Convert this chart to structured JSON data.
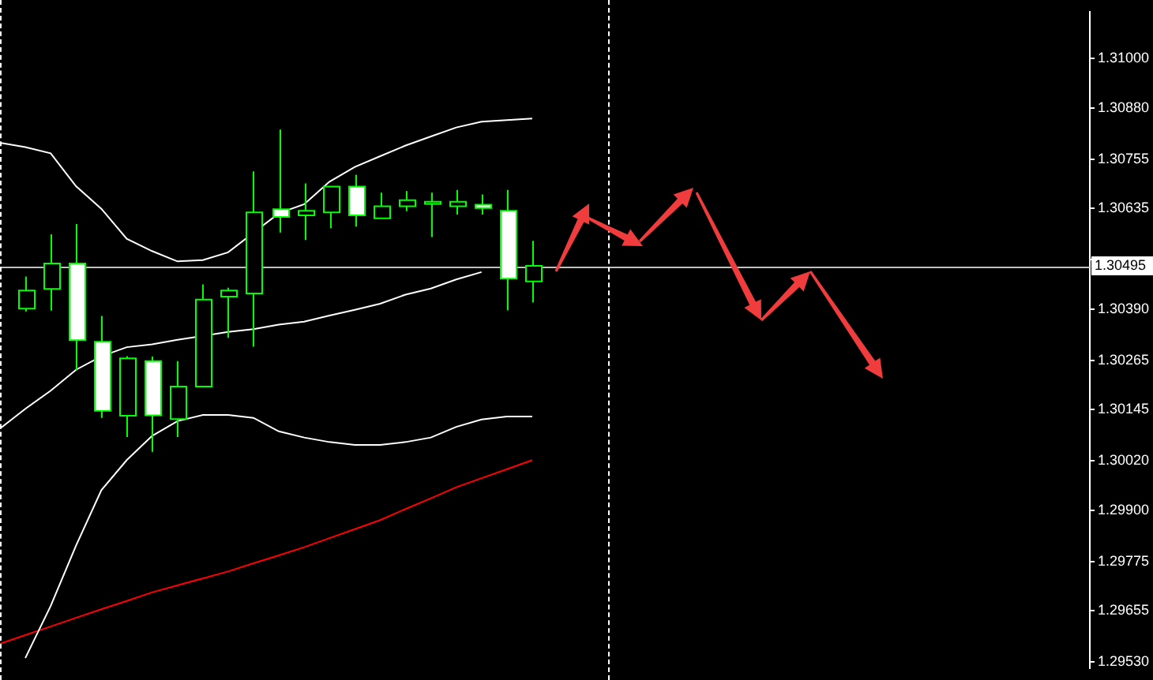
{
  "chart_data": {
    "type": "candlestick",
    "ylim": [
      1.29515,
      1.31114
    ],
    "categories": [
      null,
      null,
      null,
      null,
      null,
      null,
      null,
      null,
      null,
      null,
      null,
      null,
      null,
      null,
      null,
      null,
      null,
      null,
      null,
      null,
      null,
      null,
      null,
      null,
      null,
      null,
      null,
      null,
      null,
      null,
      null,
      null,
      null,
      null,
      null,
      null,
      null,
      null,
      null,
      null,
      null,
      null,
      null,
      null
    ],
    "yticks": [
      {
        "value": 1.31,
        "label": "1.31000"
      },
      {
        "value": 1.3088,
        "label": "1.30880"
      },
      {
        "value": 1.30755,
        "label": "1.30755"
      },
      {
        "value": 1.30635,
        "label": "1.30635"
      },
      {
        "value": 1.3051,
        "label": null
      },
      {
        "value": 1.3039,
        "label": "1.30390"
      },
      {
        "value": 1.30265,
        "label": "1.30265"
      },
      {
        "value": 1.30145,
        "label": "1.30145"
      },
      {
        "value": 1.3002,
        "label": "1.30020"
      },
      {
        "value": 1.299,
        "label": "1.29900"
      },
      {
        "value": 1.29775,
        "label": "1.29775"
      },
      {
        "value": 1.29655,
        "label": "1.29655"
      },
      {
        "value": 1.2953,
        "label": "1.29530"
      }
    ],
    "tick_labels": "y",
    "grid": false,
    "legend": false,
    "series": [
      {
        "type": "line",
        "color": "#ffffff",
        "values": [
          1.30795,
          1.30784,
          1.30769,
          1.30689,
          1.30634,
          1.30561,
          1.30531,
          1.30506,
          1.30509,
          1.30528,
          null,
          1.30623,
          1.30645,
          1.307,
          1.30736,
          1.30762,
          1.30788,
          1.3081,
          1.30832,
          1.30846,
          1.3085,
          1.30854,
          null,
          null,
          null,
          null,
          null,
          null,
          null,
          null,
          null,
          null,
          null,
          null,
          null,
          null,
          null,
          null,
          null,
          null,
          null,
          null,
          null,
          null
        ]
      },
      {
        "type": "line",
        "color": "#ffffff",
        "values": [
          1.30099,
          1.30147,
          1.30191,
          1.30242,
          1.30275,
          1.30297,
          1.30304,
          1.30315,
          null,
          1.30334,
          1.30341,
          1.30352,
          1.30359,
          1.30374,
          1.30388,
          1.30403,
          1.30425,
          1.3044,
          1.30462,
          1.3048,
          null,
          null,
          null,
          null,
          null,
          null,
          null,
          null,
          null,
          null,
          null,
          null,
          null,
          null,
          null,
          null,
          null,
          null,
          null,
          null,
          null,
          null,
          null,
          null
        ]
      },
      {
        "type": "line",
        "color": "#ffffff",
        "values": [
          null,
          1.2954,
          1.29667,
          1.29814,
          1.29949,
          1.30022,
          1.30081,
          1.30117,
          1.30132,
          1.30132,
          1.30125,
          1.30092,
          1.30077,
          1.30066,
          1.30059,
          1.30059,
          1.30066,
          1.30077,
          1.30103,
          1.30121,
          1.30128,
          1.30128,
          null,
          null,
          null,
          null,
          null,
          null,
          null,
          null,
          null,
          null,
          null,
          null,
          null,
          null,
          null,
          null,
          null,
          null,
          null,
          null,
          null,
          null
        ]
      },
      {
        "type": "line",
        "color": "#ff0000",
        "values": [
          1.29575,
          1.29596,
          1.29617,
          1.29638,
          1.29659,
          1.29679,
          1.297,
          1.29717,
          1.29734,
          1.29751,
          1.29771,
          1.2979,
          1.2981,
          1.29832,
          1.29854,
          1.29876,
          1.29903,
          1.29929,
          1.29956,
          1.29978,
          1.3,
          1.30022,
          null,
          null,
          null,
          null,
          null,
          null,
          null,
          null,
          null,
          null,
          null,
          null,
          null,
          null,
          null,
          null,
          null,
          null,
          null,
          null,
          null,
          null
        ]
      },
      {
        "color": "#00ff00",
        "colors": [
          null,
          "#000000",
          "#000000",
          "#ffffff",
          "#ffffff",
          "#000000",
          "#ffffff",
          "#000000",
          "#000000",
          "#000000",
          "#000000",
          "#ffffff",
          "#000000",
          "#000000",
          "#ffffff",
          "#000000",
          "#000000",
          "#000000",
          "#000000",
          "#ffffff",
          "#ffffff",
          "#000000",
          null,
          null,
          null,
          null,
          null,
          null,
          null,
          null,
          null,
          null,
          null,
          null,
          null,
          null,
          null,
          null,
          null,
          null,
          null,
          null,
          null,
          null
        ],
        "ohlc": [
          null,
          [
            1.30391,
            1.30469,
            1.30384,
            1.30435
          ],
          [
            1.30439,
            1.30572,
            1.30386,
            1.30501
          ],
          [
            1.30501,
            1.30597,
            1.30241,
            1.30314
          ],
          [
            1.3031,
            1.30373,
            1.30125,
            1.30142
          ],
          [
            1.3013,
            1.30275,
            1.30078,
            1.3027
          ],
          [
            1.30263,
            1.30274,
            1.30042,
            1.30131
          ],
          [
            1.30122,
            1.30263,
            1.30078,
            1.30201
          ],
          [
            1.30201,
            1.3045,
            1.30201,
            1.30413
          ],
          [
            1.3042,
            1.30442,
            1.3032,
            1.30435
          ],
          [
            1.30428,
            1.30725,
            1.30298,
            1.30625
          ],
          [
            1.30633,
            1.30827,
            1.30576,
            1.30614
          ],
          [
            1.30618,
            1.30696,
            1.30558,
            1.30629
          ],
          [
            1.30625,
            1.30688,
            1.30587,
            1.30688
          ],
          [
            1.30688,
            1.30717,
            1.30591,
            1.30618
          ],
          [
            1.30611,
            1.30673,
            1.30611,
            1.3064
          ],
          [
            1.3064,
            1.30677,
            1.30628,
            1.30655
          ],
          [
            1.30646,
            1.30673,
            1.30565,
            1.30651
          ],
          [
            1.3064,
            1.3068,
            1.3062,
            1.30651
          ],
          [
            1.30644,
            1.30669,
            1.3062,
            1.30636
          ],
          [
            1.30629,
            1.3068,
            1.30387,
            1.30464
          ],
          [
            1.30457,
            1.30556,
            1.30406,
            1.30495
          ],
          null,
          null,
          null,
          null,
          null,
          null,
          null,
          null,
          null,
          null,
          null,
          null,
          null,
          null,
          null,
          null,
          null,
          null,
          null,
          null,
          null,
          null
        ]
      }
    ],
    "ref_lines": [
      {
        "axis": "y",
        "value": 1.30495,
        "label": "1.30495",
        "color": "#c0c0c0",
        "line_style": "solid"
      }
    ]
  }
}
